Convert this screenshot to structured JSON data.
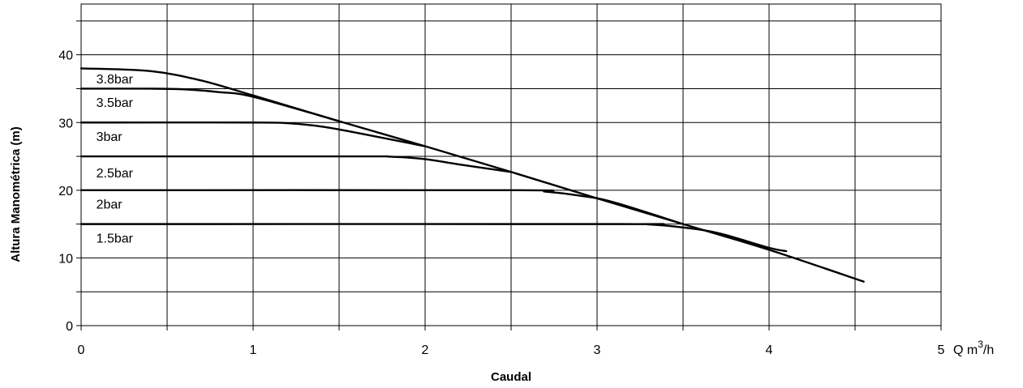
{
  "chart_data": {
    "type": "line",
    "xlabel": "Caudal",
    "ylabel": "Altura Manométrica (m)",
    "x_unit_prefix": "Q m",
    "x_unit_sup": "3",
    "x_unit_suffix": "/h",
    "xlim": [
      0,
      5
    ],
    "ylim": [
      0,
      47.5
    ],
    "x_ticks": [
      0,
      1,
      2,
      3,
      4,
      5
    ],
    "y_ticks": [
      0,
      10,
      20,
      30,
      40
    ],
    "x_grid": [
      0,
      0.5,
      1,
      1.5,
      2,
      2.5,
      3,
      3.5,
      4,
      4.5,
      5
    ],
    "y_grid": [
      0,
      5,
      10,
      15,
      20,
      25,
      30,
      35,
      40,
      45
    ],
    "grid": true,
    "series": [
      {
        "name": "3.8bar",
        "label_at": [
          0.05,
          36.5
        ],
        "points": [
          [
            0,
            38
          ],
          [
            0.4,
            37.6
          ],
          [
            0.7,
            36.2
          ],
          [
            1.0,
            34.0
          ],
          [
            1.5,
            30.2
          ],
          [
            2.0,
            26.5
          ],
          [
            2.5,
            22.7
          ],
          [
            3.0,
            18.8
          ],
          [
            3.5,
            15.0
          ],
          [
            4.0,
            11.2
          ],
          [
            4.55,
            6.5
          ]
        ]
      },
      {
        "name": "3.5bar",
        "label_at": [
          0.05,
          33.0
        ],
        "points": [
          [
            0,
            35
          ],
          [
            0.4,
            35
          ],
          [
            0.6,
            34.9
          ],
          [
            0.8,
            34.5
          ],
          [
            1.0,
            33.8
          ],
          [
            1.5,
            30.2
          ]
        ]
      },
      {
        "name": "3bar",
        "label_at": [
          0.05,
          28.0
        ],
        "points": [
          [
            0,
            30
          ],
          [
            1.0,
            30
          ],
          [
            1.2,
            29.9
          ],
          [
            1.4,
            29.4
          ],
          [
            1.6,
            28.5
          ],
          [
            2.0,
            26.5
          ]
        ]
      },
      {
        "name": "2.5bar",
        "label_at": [
          0.05,
          22.6
        ],
        "points": [
          [
            0,
            25
          ],
          [
            1.6,
            25
          ],
          [
            1.8,
            24.95
          ],
          [
            2.0,
            24.6
          ],
          [
            2.2,
            23.8
          ],
          [
            2.5,
            22.7
          ]
        ]
      },
      {
        "name": "2bar",
        "label_at": [
          0.05,
          18.0
        ],
        "points": [
          [
            0,
            20
          ],
          [
            2.5,
            20
          ],
          [
            2.7,
            19.8
          ],
          [
            2.9,
            19.2
          ],
          [
            3.1,
            18.2
          ],
          [
            3.5,
            15.0
          ]
        ]
      },
      {
        "name": "1.5bar",
        "label_at": [
          0.05,
          13.0
        ],
        "points": [
          [
            0,
            15
          ],
          [
            3.1,
            15
          ],
          [
            3.3,
            14.95
          ],
          [
            3.5,
            14.5
          ],
          [
            3.7,
            13.7
          ],
          [
            4.0,
            11.5
          ],
          [
            4.1,
            11.0
          ]
        ]
      }
    ]
  }
}
